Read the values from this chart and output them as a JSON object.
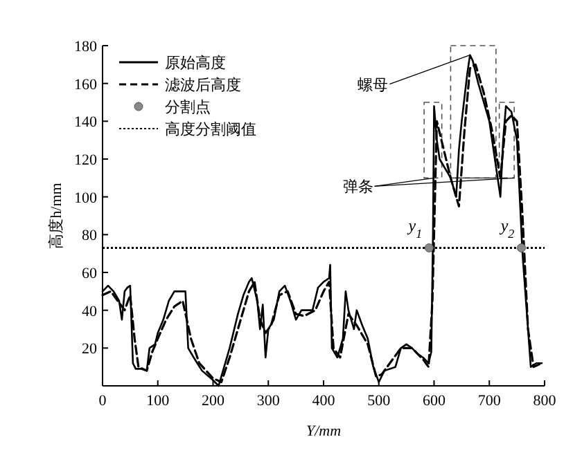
{
  "chart_data": {
    "type": "line",
    "xlabel": "Y/mm",
    "ylabel": "高度h/mm",
    "xlim": [
      0,
      800
    ],
    "ylim": [
      0,
      180
    ],
    "xticks": [
      0,
      100,
      200,
      300,
      400,
      500,
      600,
      700,
      800
    ],
    "yticks": [
      20,
      40,
      60,
      80,
      100,
      120,
      140,
      160,
      180
    ],
    "grid": false,
    "legend": "top left",
    "series": [
      {
        "name": "原始高度",
        "color": "#000000",
        "line_style": "solid",
        "x": [
          0,
          10,
          20,
          30,
          35,
          40,
          45,
          50,
          55,
          60,
          70,
          80,
          85,
          95,
          100,
          110,
          120,
          130,
          150,
          155,
          165,
          180,
          200,
          210,
          215,
          230,
          245,
          255,
          265,
          270,
          280,
          285,
          290,
          295,
          300,
          310,
          320,
          330,
          340,
          350,
          360,
          380,
          390,
          400,
          410,
          412,
          415,
          425,
          435,
          440,
          445,
          455,
          460,
          470,
          480,
          490,
          500,
          510,
          530,
          540,
          550,
          560,
          570,
          580,
          590,
          595,
          598,
          600,
          605,
          610,
          620,
          630,
          640,
          645,
          650,
          660,
          665,
          670,
          680,
          690,
          700,
          710,
          720,
          725,
          730,
          740,
          750,
          755,
          760,
          770,
          775,
          785,
          795
        ],
        "values": [
          50,
          53,
          50,
          45,
          35,
          50,
          52,
          53,
          12,
          9,
          9,
          8,
          20,
          22,
          28,
          35,
          45,
          50,
          50,
          20,
          15,
          8,
          3,
          0,
          5,
          20,
          38,
          48,
          55,
          57,
          45,
          30,
          43,
          15,
          30,
          35,
          50,
          53,
          45,
          35,
          40,
          40,
          52,
          55,
          57,
          64,
          20,
          15,
          25,
          50,
          40,
          30,
          40,
          32,
          25,
          10,
          2,
          8,
          10,
          20,
          22,
          20,
          17,
          15,
          12,
          18,
          80,
          148,
          130,
          120,
          115,
          110,
          100,
          125,
          140,
          165,
          175,
          172,
          160,
          150,
          140,
          120,
          100,
          130,
          148,
          145,
          130,
          100,
          70,
          30,
          10,
          12,
          12
        ]
      },
      {
        "name": "滤波后高度",
        "color": "#000000",
        "line_style": "dashed",
        "x": [
          0,
          15,
          30,
          40,
          50,
          58,
          65,
          80,
          90,
          100,
          115,
          130,
          145,
          160,
          175,
          200,
          215,
          230,
          250,
          265,
          275,
          285,
          295,
          305,
          320,
          335,
          350,
          365,
          385,
          400,
          410,
          418,
          430,
          445,
          460,
          480,
          495,
          505,
          520,
          540,
          560,
          580,
          590,
          597,
          605,
          615,
          630,
          645,
          655,
          665,
          675,
          690,
          705,
          720,
          730,
          740,
          750,
          760,
          770,
          780,
          795
        ],
        "values": [
          48,
          50,
          44,
          40,
          48,
          25,
          10,
          8,
          18,
          25,
          35,
          42,
          45,
          25,
          12,
          4,
          2,
          15,
          35,
          50,
          55,
          35,
          28,
          32,
          48,
          50,
          38,
          37,
          40,
          50,
          55,
          20,
          15,
          38,
          32,
          22,
          5,
          6,
          12,
          20,
          20,
          14,
          10,
          45,
          140,
          128,
          110,
          95,
          135,
          168,
          170,
          155,
          135,
          110,
          140,
          143,
          140,
          90,
          30,
          10,
          12
        ]
      },
      {
        "name": "分割点",
        "type": "scatter",
        "marker": "circle",
        "color": "#888888",
        "x": [
          591,
          758
        ],
        "values": [
          73,
          73
        ]
      }
    ],
    "ref_lines": [
      {
        "axis": "y",
        "value": 73,
        "label": "高度分割阈值",
        "line_style": "dotted",
        "color": "#000000"
      }
    ],
    "annotations": [
      {
        "text": "螺母",
        "x": 665,
        "y": 175
      },
      {
        "text": "弹条",
        "x": 600,
        "y": 110
      },
      {
        "text": "y$_{1}$",
        "x": 591,
        "y": 73
      },
      {
        "text": "y$_{2}$",
        "x": 758,
        "y": 73
      }
    ]
  }
}
